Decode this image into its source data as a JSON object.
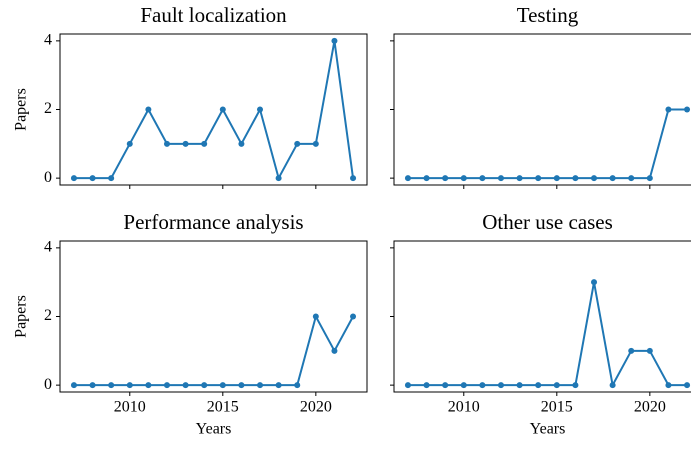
{
  "chart_data": [
    {
      "type": "line",
      "title": "Fault localization",
      "ylabel": "Papers",
      "x": [
        2007,
        2008,
        2009,
        2010,
        2011,
        2012,
        2013,
        2014,
        2015,
        2016,
        2017,
        2018,
        2019,
        2020,
        2021,
        2022
      ],
      "values": [
        0,
        0,
        0,
        1,
        2,
        1,
        1,
        1,
        2,
        1,
        2,
        0,
        1,
        1,
        4,
        0
      ],
      "color": "#1f77b4",
      "xlim": [
        2006.25,
        2022.75
      ],
      "ylim": [
        -0.2,
        4.2
      ],
      "xticks": [
        2010,
        2015,
        2020
      ],
      "yticks": [
        0,
        2,
        4
      ]
    },
    {
      "type": "line",
      "title": "Testing",
      "x": [
        2007,
        2008,
        2009,
        2010,
        2011,
        2012,
        2013,
        2014,
        2015,
        2016,
        2017,
        2018,
        2019,
        2020,
        2021,
        2022
      ],
      "values": [
        0,
        0,
        0,
        0,
        0,
        0,
        0,
        0,
        0,
        0,
        0,
        0,
        0,
        0,
        2,
        2
      ],
      "color": "#1f77b4",
      "xlim": [
        2006.25,
        2022.75
      ],
      "ylim": [
        -0.2,
        4.2
      ],
      "xticks": [
        2010,
        2015,
        2020
      ],
      "yticks": [
        0,
        2,
        4
      ]
    },
    {
      "type": "line",
      "title": "Performance analysis",
      "ylabel": "Papers",
      "xlabel": "Years",
      "x": [
        2007,
        2008,
        2009,
        2010,
        2011,
        2012,
        2013,
        2014,
        2015,
        2016,
        2017,
        2018,
        2019,
        2020,
        2021,
        2022
      ],
      "values": [
        0,
        0,
        0,
        0,
        0,
        0,
        0,
        0,
        0,
        0,
        0,
        0,
        0,
        2,
        1,
        2
      ],
      "color": "#1f77b4",
      "xlim": [
        2006.25,
        2022.75
      ],
      "ylim": [
        -0.2,
        4.2
      ],
      "xticks": [
        2010,
        2015,
        2020
      ],
      "yticks": [
        0,
        2,
        4
      ]
    },
    {
      "type": "line",
      "title": "Other use cases",
      "xlabel": "Years",
      "x": [
        2007,
        2008,
        2009,
        2010,
        2011,
        2012,
        2013,
        2014,
        2015,
        2016,
        2017,
        2018,
        2019,
        2020,
        2021,
        2022
      ],
      "values": [
        0,
        0,
        0,
        0,
        0,
        0,
        0,
        0,
        0,
        0,
        3,
        0,
        1,
        1,
        0,
        0
      ],
      "color": "#1f77b4",
      "xlim": [
        2006.25,
        2022.75
      ],
      "ylim": [
        -0.2,
        4.2
      ],
      "xticks": [
        2010,
        2015,
        2020
      ],
      "yticks": [
        0,
        2,
        4
      ]
    }
  ]
}
